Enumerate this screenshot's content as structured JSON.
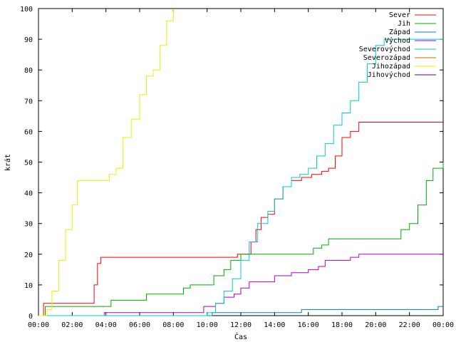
{
  "chart_data": {
    "type": "line",
    "xlabel": "Čas",
    "ylabel": "krát",
    "xlim": [
      0,
      24
    ],
    "ylim": [
      0,
      100
    ],
    "x_ticks": [
      "00:00",
      "02:00",
      "04:00",
      "06:00",
      "08:00",
      "10:00",
      "12:00",
      "14:00",
      "16:00",
      "18:00",
      "20:00",
      "22:00",
      "00:00"
    ],
    "y_ticks": [
      "0",
      "10",
      "20",
      "30",
      "40",
      "50",
      "60",
      "70",
      "80",
      "90",
      "100"
    ],
    "legend_position": "top-right",
    "series": [
      {
        "name": "Sever",
        "color": "#ff0000",
        "points": [
          [
            0,
            0
          ],
          [
            0.3,
            4
          ],
          [
            1.0,
            4
          ],
          [
            2.5,
            4
          ],
          [
            3.0,
            4
          ],
          [
            3.3,
            10
          ],
          [
            3.5,
            17
          ],
          [
            3.7,
            19
          ],
          [
            8,
            19
          ],
          [
            11.5,
            19
          ],
          [
            11.8,
            20
          ],
          [
            12.2,
            20
          ],
          [
            12.6,
            24
          ],
          [
            12.9,
            28
          ],
          [
            13.2,
            32
          ],
          [
            13.6,
            33
          ],
          [
            14,
            38
          ],
          [
            14.5,
            42
          ],
          [
            15,
            44
          ],
          [
            15.6,
            45
          ],
          [
            16.2,
            46
          ],
          [
            16.8,
            47
          ],
          [
            17.2,
            48
          ],
          [
            17.6,
            52
          ],
          [
            18,
            58
          ],
          [
            18.5,
            60
          ],
          [
            19,
            63
          ],
          [
            21,
            63
          ],
          [
            23,
            63
          ],
          [
            24,
            63
          ]
        ]
      },
      {
        "name": "Jih",
        "color": "#00aa00",
        "points": [
          [
            0,
            0
          ],
          [
            0.4,
            3
          ],
          [
            2,
            3
          ],
          [
            4,
            3
          ],
          [
            4.3,
            5
          ],
          [
            6,
            5
          ],
          [
            6.4,
            7
          ],
          [
            8,
            7
          ],
          [
            8.6,
            9
          ],
          [
            9,
            10
          ],
          [
            10,
            10
          ],
          [
            10.4,
            13
          ],
          [
            11,
            15
          ],
          [
            11.4,
            18
          ],
          [
            12,
            20
          ],
          [
            14,
            20
          ],
          [
            16,
            20
          ],
          [
            16.3,
            22
          ],
          [
            16.8,
            23
          ],
          [
            17.2,
            25
          ],
          [
            19,
            25
          ],
          [
            21,
            25
          ],
          [
            21.5,
            28
          ],
          [
            22,
            30
          ],
          [
            22.5,
            36
          ],
          [
            23,
            44
          ],
          [
            23.4,
            48
          ],
          [
            24,
            50
          ]
        ]
      },
      {
        "name": "Západ",
        "color": "#0088aa",
        "points": [
          [
            0,
            0
          ],
          [
            8,
            0
          ],
          [
            10,
            0
          ],
          [
            10.3,
            1
          ],
          [
            15,
            1
          ],
          [
            15.6,
            2
          ],
          [
            20,
            2
          ],
          [
            23.5,
            2
          ],
          [
            23.7,
            3
          ],
          [
            24,
            3
          ]
        ]
      },
      {
        "name": "Východ",
        "color": "#aa00cc",
        "points": [
          [
            0,
            0
          ],
          [
            3,
            0
          ],
          [
            3.9,
            1
          ],
          [
            6,
            1
          ],
          [
            8,
            1
          ],
          [
            9.5,
            1
          ],
          [
            9.8,
            3
          ],
          [
            10.5,
            4
          ],
          [
            11,
            6
          ],
          [
            11.6,
            7
          ],
          [
            12,
            9
          ],
          [
            12.5,
            11
          ],
          [
            13.5,
            11
          ],
          [
            14,
            13
          ],
          [
            15,
            14
          ],
          [
            16,
            15
          ],
          [
            16.6,
            16
          ],
          [
            17,
            18
          ],
          [
            18,
            18
          ],
          [
            18.5,
            19
          ],
          [
            19,
            20
          ],
          [
            21,
            20
          ],
          [
            24,
            20
          ]
        ]
      },
      {
        "name": "Severovýchod",
        "color": "#00cccc",
        "points": [
          [
            0,
            0
          ],
          [
            9.5,
            0
          ],
          [
            10,
            1
          ],
          [
            10.5,
            4
          ],
          [
            11,
            8
          ],
          [
            11.5,
            12
          ],
          [
            12,
            18
          ],
          [
            12.5,
            24
          ],
          [
            13,
            30
          ],
          [
            13.6,
            34
          ],
          [
            14,
            38
          ],
          [
            14.5,
            42
          ],
          [
            15,
            45
          ],
          [
            15.5,
            46
          ],
          [
            16,
            48
          ],
          [
            16.5,
            52
          ],
          [
            17,
            56
          ],
          [
            17.5,
            62
          ],
          [
            18,
            66
          ],
          [
            18.5,
            70
          ],
          [
            19,
            76
          ],
          [
            19.5,
            82
          ],
          [
            20,
            88
          ],
          [
            20.5,
            90
          ],
          [
            24,
            90
          ]
        ]
      },
      {
        "name": "Severozápad",
        "color": "#cc6600",
        "points": []
      },
      {
        "name": "Jihozápad",
        "color": "#eeee00",
        "points": [
          [
            0,
            0
          ],
          [
            0.5,
            2
          ],
          [
            0.8,
            8
          ],
          [
            1.2,
            18
          ],
          [
            1.6,
            28
          ],
          [
            2,
            36
          ],
          [
            2.3,
            44
          ],
          [
            3,
            44
          ],
          [
            4,
            44
          ],
          [
            4.2,
            46
          ],
          [
            4.6,
            48
          ],
          [
            5,
            58
          ],
          [
            5.5,
            64
          ],
          [
            6,
            72
          ],
          [
            6.4,
            78
          ],
          [
            6.8,
            80
          ],
          [
            7.2,
            88
          ],
          [
            7.6,
            96
          ],
          [
            8,
            100
          ]
        ]
      },
      {
        "name": "Jihovýchod",
        "color": "#5500aa",
        "points": []
      }
    ]
  }
}
